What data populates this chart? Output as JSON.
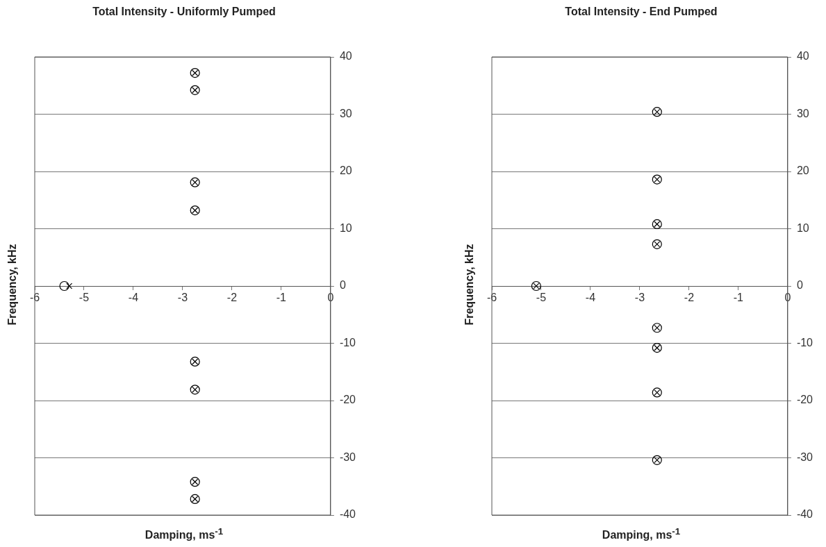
{
  "chart_data": [
    {
      "type": "scatter",
      "title": "Total Intensity - Uniformly Pumped",
      "xlabel": "Damping, ms$^{-1}$",
      "ylabel": "Frequency, kHz",
      "xlim": [
        -6,
        0
      ],
      "xticks": [
        -6,
        -5,
        -4,
        -3,
        -2,
        -1,
        0
      ],
      "ylim": [
        -40,
        40
      ],
      "yticks": [
        -40,
        -30,
        -20,
        -10,
        0,
        10,
        20,
        30,
        40
      ],
      "grid": "y",
      "legend": false,
      "series": [
        {
          "color": "#000000",
          "marker": "circle",
          "x": [
            -5.4,
            -2.75,
            -2.75,
            -2.75,
            -2.75,
            -2.75,
            -2.75,
            -2.75,
            -2.75
          ],
          "values": [
            0,
            37.2,
            34.2,
            18.1,
            13.2,
            -13.2,
            -18.1,
            -34.2,
            -37.2
          ]
        },
        {
          "color": "#000000",
          "marker": "cross",
          "x": [
            -5.3,
            -2.75,
            -2.75,
            -2.75,
            -2.75,
            -2.75,
            -2.75,
            -2.75,
            -2.75
          ],
          "values": [
            0,
            37.2,
            34.2,
            18.1,
            13.2,
            -13.2,
            -18.1,
            -34.2,
            -37.2
          ]
        }
      ]
    },
    {
      "type": "scatter",
      "title": "Total Intensity - End Pumped",
      "xlabel": "Damping, ms$^{-1}$",
      "ylabel": "Frequency, kHz",
      "xlim": [
        -6,
        0
      ],
      "xticks": [
        -6,
        -5,
        -4,
        -3,
        -2,
        -1,
        0
      ],
      "ylim": [
        -40,
        40
      ],
      "yticks": [
        -40,
        -30,
        -20,
        -10,
        0,
        10,
        20,
        30,
        40
      ],
      "grid": "y",
      "legend": false,
      "series": [
        {
          "color": "#000000",
          "marker": "cross",
          "x": [
            -5.1,
            -2.65,
            -2.65,
            -2.65,
            -2.65,
            -2.65,
            -2.65,
            -2.65,
            -2.65
          ],
          "values": [
            0,
            30.4,
            18.6,
            10.8,
            7.3,
            -7.3,
            -10.8,
            -18.6,
            -30.4
          ]
        },
        {
          "color": "#000000",
          "marker": "circle",
          "x": [
            -5.1,
            -2.65,
            -2.65,
            -2.65,
            -2.65,
            -2.65,
            -2.65,
            -2.65,
            -2.65
          ],
          "values": [
            0,
            30.4,
            18.6,
            10.8,
            7.3,
            -7.3,
            -10.8,
            -18.6,
            -30.4
          ]
        }
      ]
    }
  ]
}
